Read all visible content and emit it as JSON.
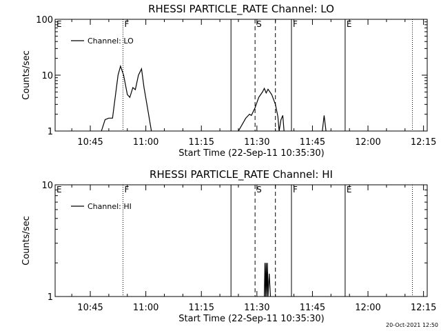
{
  "chart_data": [
    {
      "type": "line",
      "title": "RHESSI PARTICLE_RATE Channel: LO",
      "xlabel": "Start Time (22-Sep-11 10:35:30)",
      "ylabel": "Counts/sec",
      "yscale": "log",
      "ylim": [
        1,
        100
      ],
      "ytick_labels": [
        "1",
        "10",
        "100"
      ],
      "xtick_labels": [
        "10:45",
        "11:00",
        "11:15",
        "11:30",
        "11:45",
        "12:00",
        "12:15"
      ],
      "xlim": [
        "10:35:30",
        "12:16"
      ],
      "legend_position": "top-left",
      "grid": false,
      "series": [
        {
          "name": "Channel: LO",
          "color": "#000000",
          "points": [
            [
              "10:48:00",
              1
            ],
            [
              "10:49:00",
              1.6
            ],
            [
              "10:50:00",
              1.7
            ],
            [
              "10:51:00",
              1.7
            ],
            [
              "10:52:30",
              10
            ],
            [
              "10:53:10",
              14.5
            ],
            [
              "10:54:00",
              10
            ],
            [
              "10:55:00",
              4.5
            ],
            [
              "10:55:40",
              4.0
            ],
            [
              "10:56:30",
              6.0
            ],
            [
              "10:57:10",
              5.5
            ],
            [
              "10:58:00",
              10
            ],
            [
              "10:58:50",
              13
            ],
            [
              "10:59:30",
              6
            ],
            [
              "11:00:30",
              2.5
            ],
            [
              "11:01:30",
              1
            ]
          ]
        },
        {
          "name": "",
          "color": "#000000",
          "points": [
            [
              "11:25:00",
              1
            ],
            [
              "11:26:00",
              1.3
            ],
            [
              "11:27:00",
              1.7
            ],
            [
              "11:28:00",
              2.0
            ],
            [
              "11:28:30",
              1.9
            ],
            [
              "11:29:30",
              2.6
            ],
            [
              "11:30:30",
              4.0
            ],
            [
              "11:31:30",
              5.0
            ],
            [
              "11:32:00",
              5.8
            ],
            [
              "11:32:30",
              4.8
            ],
            [
              "11:33:00",
              5.6
            ],
            [
              "11:34:00",
              4.5
            ],
            [
              "11:35:00",
              3.0
            ],
            [
              "11:35:40",
              1.8
            ],
            [
              "11:36:00",
              1
            ],
            [
              "11:36:30",
              1.6
            ],
            [
              "11:37:00",
              1.9
            ],
            [
              "11:37:20",
              1
            ]
          ]
        },
        {
          "name": "",
          "color": "#000000",
          "points": [
            [
              "11:47:40",
              1
            ],
            [
              "11:48:10",
              1.9
            ],
            [
              "11:48:40",
              1
            ]
          ]
        }
      ],
      "markers": [
        {
          "label": "E",
          "time": "10:35:30",
          "style": "none"
        },
        {
          "label": "F",
          "time": "10:53:50",
          "style": "dotted"
        },
        {
          "label": "",
          "time": "11:23:00",
          "style": "solid"
        },
        {
          "label": "S",
          "time": "11:29:30",
          "style": "dashed"
        },
        {
          "label": "",
          "time": "11:35:00",
          "style": "dashed"
        },
        {
          "label": "F",
          "time": "11:39:20",
          "style": "solid"
        },
        {
          "label": "E",
          "time": "11:53:50",
          "style": "solid"
        },
        {
          "label": "",
          "time": "12:12:00",
          "style": "dotted"
        }
      ]
    },
    {
      "type": "line",
      "title": "RHESSI PARTICLE_RATE Channel: HI",
      "xlabel": "Start Time (22-Sep-11 10:35:30)",
      "ylabel": "Counts/sec",
      "yscale": "log",
      "ylim": [
        1,
        10
      ],
      "ytick_labels": [
        "1",
        "10"
      ],
      "xtick_labels": [
        "10:45",
        "11:00",
        "11:15",
        "11:30",
        "11:45",
        "12:00",
        "12:15"
      ],
      "xlim": [
        "10:35:30",
        "12:16"
      ],
      "legend_position": "top-left",
      "grid": false,
      "series": [
        {
          "name": "Channel: HI",
          "color": "#000000",
          "points": [
            [
              "11:32:00",
              1
            ],
            [
              "11:32:10",
              2.0
            ],
            [
              "11:32:20",
              1
            ],
            [
              "11:32:30",
              2.0
            ],
            [
              "11:32:40",
              1
            ],
            [
              "11:32:50",
              2.0
            ],
            [
              "11:33:00",
              1
            ],
            [
              "11:33:20",
              1.6
            ],
            [
              "11:33:40",
              1
            ]
          ]
        }
      ],
      "markers": [
        {
          "label": "E",
          "time": "10:35:30",
          "style": "none"
        },
        {
          "label": "F",
          "time": "10:53:50",
          "style": "dotted"
        },
        {
          "label": "",
          "time": "11:23:00",
          "style": "solid"
        },
        {
          "label": "S",
          "time": "11:29:30",
          "style": "dashed"
        },
        {
          "label": "",
          "time": "11:35:00",
          "style": "dashed"
        },
        {
          "label": "F",
          "time": "11:39:20",
          "style": "solid"
        },
        {
          "label": "E",
          "time": "11:53:50",
          "style": "solid"
        },
        {
          "label": "",
          "time": "12:12:00",
          "style": "dotted"
        }
      ]
    }
  ],
  "footer": {
    "timestamp": "20-Oct-2021 12:50"
  }
}
